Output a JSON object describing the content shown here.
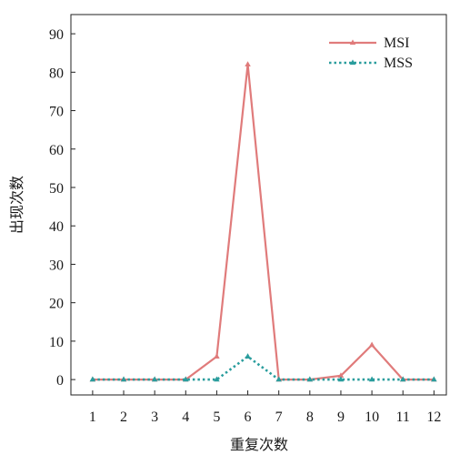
{
  "chart_data": {
    "type": "line",
    "x": [
      1,
      2,
      3,
      4,
      5,
      6,
      7,
      8,
      9,
      10,
      11,
      12
    ],
    "x_tick_labels": [
      "1",
      "2",
      "3",
      "4",
      "5",
      "6",
      "7",
      "8",
      "9",
      "10",
      "11",
      "12"
    ],
    "y_ticks": [
      0,
      10,
      20,
      30,
      40,
      50,
      60,
      70,
      80,
      90
    ],
    "y_tick_labels": [
      "0",
      "10",
      "20",
      "30",
      "40",
      "50",
      "60",
      "70",
      "80",
      "90"
    ],
    "xlim": [
      0.3,
      12.4
    ],
    "ylim": [
      -4,
      95
    ],
    "xlabel": "重复次数",
    "ylabel": "出现次数",
    "grid": false,
    "legend_position": "top-right",
    "series": [
      {
        "name": "MSI",
        "color": "#e07b7b",
        "line_style": "solid",
        "marker": "triangle",
        "values": [
          0,
          0,
          0,
          0,
          6,
          82,
          0,
          0,
          1,
          9,
          0,
          0
        ]
      },
      {
        "name": "MSS",
        "color": "#2a9d9d",
        "line_style": "dotted",
        "marker": "triangle",
        "values": [
          0,
          0,
          0,
          0,
          0,
          6,
          0,
          0,
          0,
          0,
          0,
          0
        ]
      }
    ]
  }
}
